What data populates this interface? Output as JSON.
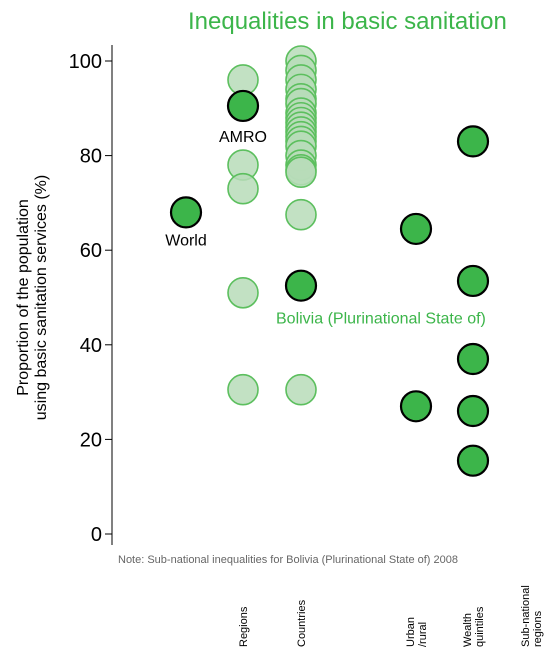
{
  "chart_data": {
    "type": "scatter",
    "title": "Inequalities in basic sanitation",
    "ylabel_lines": [
      "Proportion of the population",
      "using basic sanitation services (%)"
    ],
    "ylim": [
      0,
      100
    ],
    "yticks": [
      0,
      20,
      40,
      60,
      80,
      100
    ],
    "grid": false,
    "note": "Note: Sub-national inequalities for Bolivia (Plurinational State of)  2008",
    "categories": [
      {
        "key": "world",
        "label": ""
      },
      {
        "key": "regions",
        "label": "Regions"
      },
      {
        "key": "countries",
        "label": "Countries"
      },
      {
        "key": "urban_rural",
        "label": "Urban\n/rural"
      },
      {
        "key": "wealth",
        "label": "Wealth\nquintiles"
      },
      {
        "key": "subnational",
        "label": "Sub-national\nregions"
      }
    ],
    "series": [
      {
        "category": "world",
        "highlight": true,
        "values": [
          68
        ],
        "label": "World"
      },
      {
        "category": "regions",
        "highlight": false,
        "values": [
          96,
          78,
          73,
          51,
          30.5
        ]
      },
      {
        "category": "regions",
        "highlight": true,
        "values": [
          90.5
        ],
        "label": "AMRO"
      },
      {
        "category": "countries",
        "highlight": false,
        "values": [
          100,
          98,
          96,
          94,
          92,
          91,
          89,
          88,
          87,
          86,
          85,
          84,
          83,
          82,
          80,
          78,
          77,
          76.5,
          67.5,
          30.5
        ]
      },
      {
        "category": "countries",
        "highlight": true,
        "values": [
          52.5
        ],
        "label": "Bolivia (Plurinational State of)"
      },
      {
        "category": "urban_rural",
        "highlight": true,
        "values": [
          64.5,
          27
        ]
      },
      {
        "category": "wealth",
        "highlight": true,
        "values": [
          83,
          53.5,
          37,
          26,
          15.5
        ]
      }
    ],
    "colors": {
      "highlight": "#3cb54a",
      "muted_fill": "#b7dcb8",
      "muted_stroke": "#5cbf5e",
      "label_green": "#3cb54a"
    }
  }
}
